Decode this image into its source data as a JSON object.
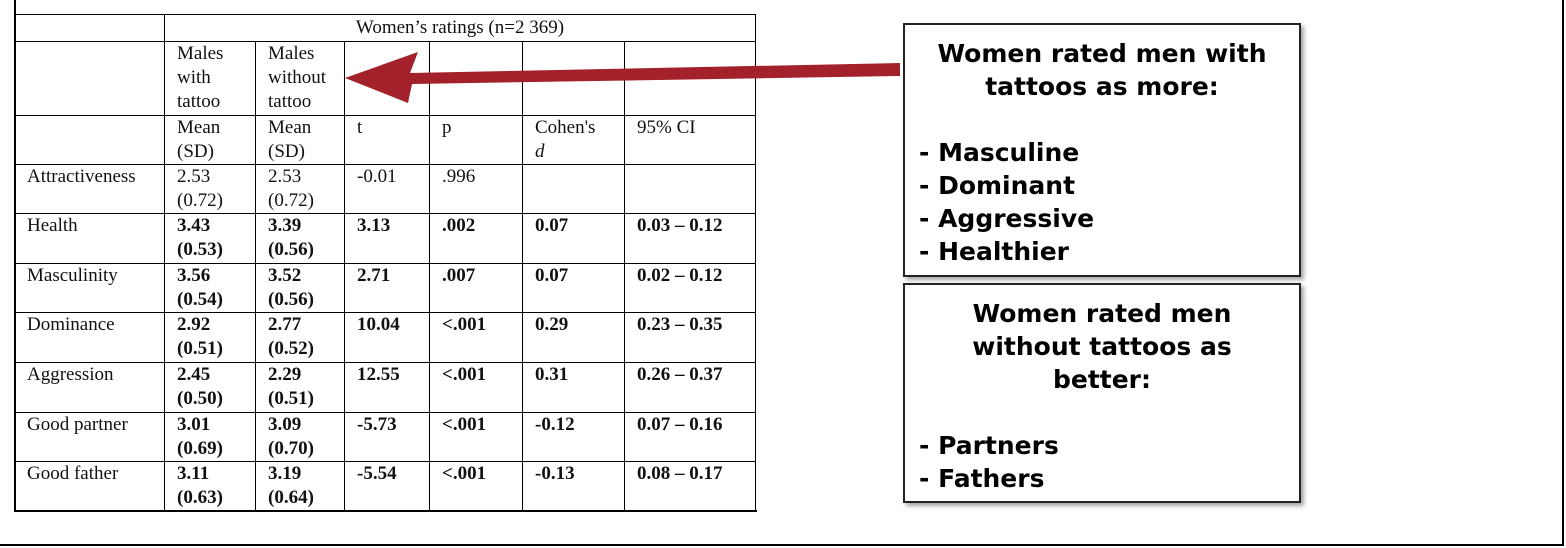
{
  "table": {
    "group_header": "Women’s ratings (n=2 369)",
    "column_groups": [
      "Males with tattoo",
      "Males without tattoo"
    ],
    "column_headers": [
      "Mean (SD)",
      "Mean (SD)",
      "t",
      "p",
      "Cohen's",
      "95% CI"
    ],
    "cohens_symbol": "d",
    "rows": [
      {
        "label": "Attractiveness",
        "bold": false,
        "cells": [
          "2.53",
          "(0.72)",
          "2.53",
          "(0.72)",
          "-0.01",
          ".996",
          null,
          null
        ]
      },
      {
        "label": "Health",
        "bold": true,
        "cells": [
          "3.43",
          "(0.53)",
          "3.39",
          "(0.56)",
          "3.13",
          ".002",
          "0.07",
          "0.03 – 0.12"
        ]
      },
      {
        "label": "Masculinity",
        "bold": true,
        "cells": [
          "3.56",
          "(0.54)",
          "3.52",
          "(0.56)",
          "2.71",
          ".007",
          "0.07",
          "0.02 – 0.12"
        ]
      },
      {
        "label": "Dominance",
        "bold": true,
        "cells": [
          "2.92",
          "(0.51)",
          "2.77",
          "(0.52)",
          "10.04",
          "<.001",
          "0.29",
          "0.23 – 0.35"
        ]
      },
      {
        "label": "Aggression",
        "bold": true,
        "cells": [
          "2.45",
          "(0.50)",
          "2.29",
          "(0.51)",
          "12.55",
          "<.001",
          "0.31",
          "0.26 – 0.37"
        ]
      },
      {
        "label": "Good partner",
        "bold": true,
        "cells": [
          "3.01",
          "(0.69)",
          "3.09",
          "(0.70)",
          "-5.73",
          "<.001",
          "-0.12",
          "0.07 – 0.16"
        ]
      },
      {
        "label": "Good father",
        "bold": true,
        "cells": [
          "3.11",
          "(0.63)",
          "3.19",
          "(0.64)",
          "-5.54",
          "<.001",
          "-0.13",
          "0.08 – 0.17"
        ]
      }
    ]
  },
  "callouts": [
    {
      "title": "Women rated men with tattoos as more:",
      "items": [
        "- Masculine",
        "- Dominant",
        "- Aggressive",
        "- Healthier"
      ]
    },
    {
      "title": "Women rated men without tattoos as better:",
      "items": [
        "- Partners",
        "- Fathers"
      ]
    }
  ]
}
